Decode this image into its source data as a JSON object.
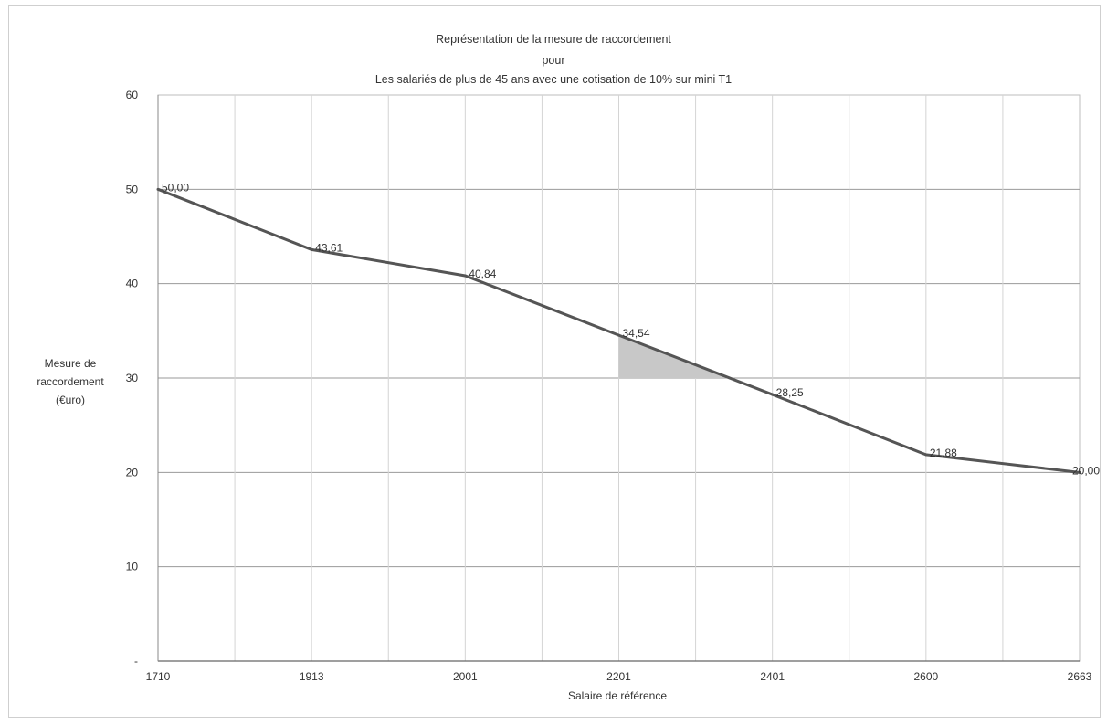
{
  "chart_data": {
    "type": "line",
    "title_lines": [
      "Représentation de la mesure de raccordement",
      "pour",
      "Les salariés de plus de 45 ans avec une cotisation de 10% sur mini T1"
    ],
    "xlabel": "Salaire de référence",
    "ylabel_lines": [
      "Mesure de",
      "raccordement",
      "(€uro)"
    ],
    "ylim": [
      0,
      60
    ],
    "yticks": [
      0,
      10,
      20,
      30,
      40,
      50,
      60
    ],
    "ytick_labels": [
      "-",
      "10",
      "20",
      "30",
      "40",
      "50",
      "60"
    ],
    "grid": true,
    "x": [
      "1710",
      "1913",
      "2001",
      "2201",
      "2401",
      "2600",
      "2663"
    ],
    "series": [
      {
        "values": [
          50.0,
          43.61,
          40.84,
          34.54,
          28.25,
          21.88,
          20.0
        ],
        "labels": [
          "50,00",
          "43,61",
          "40,84",
          "34,54",
          "28,25",
          "21,88",
          "20,00"
        ],
        "color": "#555555"
      }
    ],
    "shaded_region": {
      "x_from": "2201",
      "y_from": 30,
      "y_to": 34.54,
      "color": "#c8c8c8"
    }
  }
}
